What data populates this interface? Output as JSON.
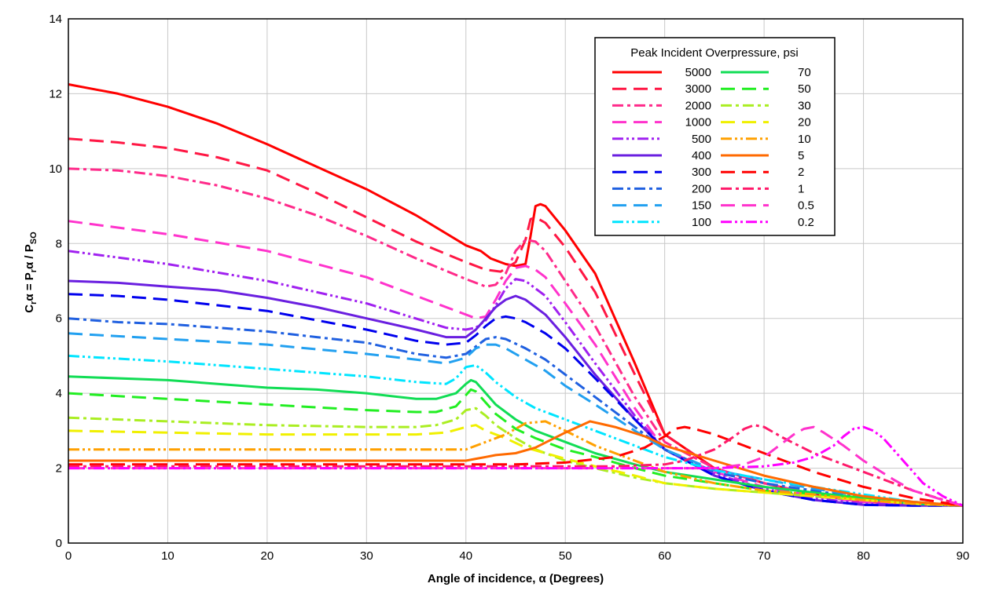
{
  "chart_data": {
    "type": "line",
    "xlabel": "Angle of incidence, α (Degrees)",
    "ylabel": "Crα = Prα / PSO",
    "ylabel_parts": {
      "c": "C",
      "c_sub": "r",
      "eq": "α = P",
      "p_sub": "r",
      "rest": "α / P",
      "so_sub": "SO"
    },
    "xlim": [
      0,
      90
    ],
    "ylim": [
      0,
      14
    ],
    "x_ticks": [
      0,
      10,
      20,
      30,
      40,
      50,
      60,
      70,
      80,
      90
    ],
    "y_ticks": [
      0,
      2,
      4,
      6,
      8,
      10,
      12,
      14
    ],
    "grid": true,
    "legend_title": "Peak Incident Overpressure, psi",
    "legend_position": "top-right",
    "series": [
      {
        "name": "5000",
        "color": "#ff0000",
        "dash": "solid",
        "x": [
          0,
          5,
          10,
          15,
          20,
          25,
          30,
          35,
          40,
          41.5,
          42.5,
          44,
          45,
          46,
          46.5,
          47,
          47.5,
          48,
          50,
          53,
          57,
          60,
          65,
          70,
          75,
          80,
          85,
          90
        ],
        "y": [
          12.25,
          12.0,
          11.65,
          11.2,
          10.65,
          10.05,
          9.45,
          8.75,
          7.95,
          7.8,
          7.6,
          7.45,
          7.4,
          7.45,
          8.2,
          9.0,
          9.05,
          9.0,
          8.35,
          7.2,
          4.8,
          2.9,
          2.0,
          1.6,
          1.3,
          1.1,
          1.05,
          1.0
        ]
      },
      {
        "name": "3000",
        "color": "#ff1744",
        "dash": "longdash",
        "x": [
          0,
          5,
          10,
          15,
          20,
          25,
          30,
          35,
          40,
          42,
          43.5,
          45,
          46,
          46.5,
          47,
          48,
          50,
          53,
          57,
          60,
          65,
          70,
          75,
          80,
          85,
          90
        ],
        "y": [
          10.8,
          10.7,
          10.55,
          10.3,
          9.95,
          9.35,
          8.7,
          8.05,
          7.5,
          7.3,
          7.25,
          7.5,
          8.1,
          8.65,
          8.7,
          8.55,
          7.9,
          6.7,
          4.5,
          2.9,
          2.0,
          1.6,
          1.3,
          1.1,
          1.05,
          1.0
        ]
      },
      {
        "name": "2000",
        "color": "#ff2a8a",
        "dash": "dashdot",
        "x": [
          0,
          5,
          10,
          15,
          20,
          25,
          30,
          35,
          40,
          42,
          43,
          44,
          45,
          46,
          47,
          48,
          50,
          53,
          57,
          60,
          65,
          70,
          75,
          80,
          85,
          90
        ],
        "y": [
          10.0,
          9.95,
          9.8,
          9.55,
          9.2,
          8.75,
          8.2,
          7.6,
          7.05,
          6.85,
          6.9,
          7.2,
          7.8,
          8.1,
          8.05,
          7.8,
          7.0,
          5.8,
          3.9,
          2.7,
          2.0,
          1.6,
          1.3,
          1.1,
          1.05,
          1.0
        ]
      },
      {
        "name": "1000",
        "color": "#ff33cc",
        "dash": "longdash",
        "x": [
          0,
          10,
          20,
          30,
          40,
          41,
          42,
          43,
          44,
          45,
          46,
          47,
          48,
          50,
          53,
          57,
          60,
          65,
          70,
          75,
          80,
          85,
          90
        ],
        "y": [
          8.6,
          8.25,
          7.8,
          7.1,
          6.1,
          6.0,
          6.05,
          6.5,
          7.0,
          7.35,
          7.4,
          7.3,
          7.1,
          6.4,
          5.3,
          3.6,
          2.5,
          1.9,
          1.5,
          1.25,
          1.1,
          1.05,
          1.0
        ]
      },
      {
        "name": "500",
        "color": "#a020f0",
        "dash": "dashdotdot",
        "x": [
          0,
          10,
          20,
          30,
          38,
          40,
          41,
          42,
          43,
          44,
          45,
          46,
          48,
          50,
          53,
          57,
          60,
          65,
          70,
          75,
          80,
          85,
          90
        ],
        "y": [
          7.8,
          7.45,
          7.0,
          6.4,
          5.75,
          5.7,
          5.75,
          5.95,
          6.35,
          6.8,
          7.05,
          7.0,
          6.6,
          5.9,
          4.8,
          3.4,
          2.5,
          1.85,
          1.45,
          1.2,
          1.05,
          1.02,
          1.0
        ]
      },
      {
        "name": "400",
        "color": "#6a1fe0",
        "dash": "solid",
        "x": [
          0,
          5,
          10,
          15,
          20,
          25,
          30,
          35,
          38,
          40,
          41,
          42,
          43,
          44,
          45,
          46,
          48,
          50,
          53,
          57,
          60,
          65,
          70,
          75,
          80,
          85,
          90
        ],
        "y": [
          7.0,
          6.95,
          6.85,
          6.75,
          6.55,
          6.3,
          6.0,
          5.7,
          5.5,
          5.5,
          5.7,
          6.0,
          6.3,
          6.5,
          6.6,
          6.5,
          6.1,
          5.5,
          4.5,
          3.3,
          2.5,
          1.8,
          1.4,
          1.15,
          1.02,
          1.0,
          1.0
        ]
      },
      {
        "name": "300",
        "color": "#0000ee",
        "dash": "longdash",
        "x": [
          0,
          5,
          10,
          15,
          20,
          25,
          30,
          35,
          38,
          40,
          41,
          42,
          43,
          44,
          45,
          46,
          48,
          50,
          53,
          57,
          60,
          65,
          70,
          75,
          80,
          85,
          90
        ],
        "y": [
          6.65,
          6.6,
          6.5,
          6.35,
          6.2,
          5.95,
          5.7,
          5.4,
          5.3,
          5.35,
          5.55,
          5.8,
          6.0,
          6.05,
          6.0,
          5.9,
          5.6,
          5.2,
          4.4,
          3.3,
          2.5,
          1.8,
          1.4,
          1.15,
          1.02,
          1.0,
          1.0
        ]
      },
      {
        "name": "200",
        "color": "#2060e0",
        "dash": "dashdot",
        "x": [
          0,
          5,
          10,
          15,
          20,
          25,
          30,
          35,
          38,
          40,
          41,
          42,
          43,
          44,
          46,
          48,
          50,
          53,
          57,
          60,
          65,
          70,
          75,
          80,
          85,
          90
        ],
        "y": [
          6.0,
          5.9,
          5.85,
          5.75,
          5.65,
          5.5,
          5.35,
          5.05,
          4.95,
          5.05,
          5.25,
          5.45,
          5.5,
          5.45,
          5.2,
          4.9,
          4.5,
          3.9,
          3.1,
          2.5,
          1.9,
          1.6,
          1.4,
          1.2,
          1.05,
          1.0
        ]
      },
      {
        "name": "150",
        "color": "#22a0f0",
        "dash": "longdash",
        "x": [
          0,
          10,
          20,
          30,
          35,
          38,
          40,
          41,
          42,
          43,
          44,
          46,
          48,
          50,
          53,
          57,
          60,
          65,
          70,
          75,
          80,
          85,
          90
        ],
        "y": [
          5.6,
          5.45,
          5.3,
          5.05,
          4.9,
          4.8,
          4.95,
          5.2,
          5.3,
          5.3,
          5.2,
          4.9,
          4.6,
          4.2,
          3.7,
          3.0,
          2.5,
          1.95,
          1.7,
          1.45,
          1.25,
          1.1,
          1.0
        ]
      },
      {
        "name": "100",
        "color": "#00e5ff",
        "dash": "dashdotdot",
        "x": [
          0,
          10,
          20,
          30,
          35,
          38,
          39,
          40,
          41,
          42,
          43,
          45,
          47,
          50,
          53,
          57,
          60,
          65,
          70,
          75,
          80,
          85,
          90
        ],
        "y": [
          5.0,
          4.85,
          4.65,
          4.45,
          4.3,
          4.25,
          4.4,
          4.7,
          4.75,
          4.55,
          4.3,
          3.9,
          3.6,
          3.3,
          3.0,
          2.6,
          2.3,
          1.95,
          1.7,
          1.5,
          1.3,
          1.1,
          1.0
        ]
      },
      {
        "name": "70",
        "color": "#11dd55",
        "dash": "solid",
        "x": [
          0,
          10,
          20,
          25,
          30,
          35,
          37,
          39,
          40,
          40.5,
          41,
          42,
          43,
          45,
          47,
          50,
          53,
          57,
          60,
          65,
          70,
          75,
          80,
          85,
          90
        ],
        "y": [
          4.45,
          4.35,
          4.15,
          4.1,
          4.0,
          3.85,
          3.85,
          4.0,
          4.25,
          4.35,
          4.3,
          4.0,
          3.7,
          3.3,
          3.0,
          2.7,
          2.4,
          2.1,
          1.9,
          1.7,
          1.5,
          1.35,
          1.2,
          1.05,
          1.0
        ]
      },
      {
        "name": "50",
        "color": "#22ee22",
        "dash": "longdash",
        "x": [
          0,
          10,
          20,
          30,
          35,
          37,
          39,
          40,
          40.5,
          41,
          42,
          43,
          45,
          47,
          50,
          53,
          57,
          60,
          65,
          70,
          75,
          80,
          85,
          90
        ],
        "y": [
          4.0,
          3.85,
          3.7,
          3.55,
          3.5,
          3.5,
          3.65,
          3.95,
          4.1,
          4.05,
          3.75,
          3.45,
          3.05,
          2.8,
          2.5,
          2.3,
          2.0,
          1.8,
          1.6,
          1.4,
          1.3,
          1.2,
          1.05,
          1.0
        ]
      },
      {
        "name": "30",
        "color": "#aaee22",
        "dash": "dashdot",
        "x": [
          0,
          10,
          20,
          30,
          35,
          37,
          39,
          40,
          41,
          42,
          43,
          45,
          47,
          50,
          53,
          57,
          60,
          65,
          70,
          75,
          80,
          85,
          90
        ],
        "y": [
          3.35,
          3.25,
          3.15,
          3.1,
          3.1,
          3.15,
          3.3,
          3.55,
          3.6,
          3.4,
          3.15,
          2.8,
          2.5,
          2.2,
          2.0,
          1.75,
          1.6,
          1.45,
          1.35,
          1.25,
          1.15,
          1.05,
          1.0
        ]
      },
      {
        "name": "20",
        "color": "#f0f000",
        "dash": "longdash",
        "x": [
          0,
          10,
          20,
          30,
          35,
          38,
          40,
          41,
          42,
          44,
          46,
          50,
          53,
          57,
          60,
          65,
          70,
          75,
          80,
          85,
          90
        ],
        "y": [
          3.0,
          2.95,
          2.9,
          2.9,
          2.9,
          2.95,
          3.1,
          3.15,
          3.0,
          2.8,
          2.55,
          2.25,
          2.05,
          1.8,
          1.6,
          1.45,
          1.35,
          1.25,
          1.15,
          1.05,
          1.0
        ]
      },
      {
        "name": "10",
        "color": "#ffa000",
        "dash": "dashdotdot",
        "x": [
          0,
          10,
          20,
          30,
          40,
          42,
          44,
          46,
          48,
          50,
          53,
          57,
          60,
          65,
          70,
          75,
          80,
          85,
          90
        ],
        "y": [
          2.5,
          2.5,
          2.5,
          2.5,
          2.5,
          2.7,
          2.9,
          3.2,
          3.25,
          3.0,
          2.6,
          2.2,
          1.9,
          1.6,
          1.4,
          1.3,
          1.15,
          1.05,
          1.0
        ]
      },
      {
        "name": "5",
        "color": "#ff6a00",
        "dash": "solid",
        "x": [
          0,
          10,
          20,
          30,
          40,
          41,
          42,
          43,
          45,
          47,
          50,
          52.5,
          55,
          58,
          60,
          65,
          70,
          75,
          80,
          85,
          90
        ],
        "y": [
          2.2,
          2.2,
          2.2,
          2.2,
          2.2,
          2.25,
          2.3,
          2.35,
          2.4,
          2.55,
          2.95,
          3.25,
          3.1,
          2.85,
          2.6,
          2.2,
          1.8,
          1.5,
          1.25,
          1.1,
          1.0
        ]
      },
      {
        "name": "2",
        "color": "#ff0000",
        "dash": "longdash",
        "x": [
          0,
          10,
          20,
          30,
          40,
          45,
          50,
          55,
          58,
          60,
          61,
          62,
          63,
          65,
          68,
          70,
          75,
          80,
          85,
          90
        ],
        "y": [
          2.1,
          2.1,
          2.1,
          2.1,
          2.1,
          2.1,
          2.15,
          2.3,
          2.55,
          2.85,
          3.05,
          3.1,
          3.05,
          2.9,
          2.6,
          2.4,
          1.9,
          1.5,
          1.2,
          1.0
        ]
      },
      {
        "name": "1",
        "color": "#ff1a6a",
        "dash": "dashdot",
        "x": [
          0,
          10,
          20,
          30,
          40,
          50,
          55,
          60,
          62,
          65,
          67,
          68,
          69,
          70,
          72,
          75,
          80,
          85,
          90
        ],
        "y": [
          2.05,
          2.05,
          2.05,
          2.05,
          2.05,
          2.05,
          2.05,
          2.1,
          2.2,
          2.5,
          2.85,
          3.05,
          3.15,
          3.1,
          2.8,
          2.4,
          1.9,
          1.4,
          1.0
        ]
      },
      {
        "name": "0.5",
        "color": "#ff33cc",
        "dash": "longdash",
        "x": [
          0,
          10,
          20,
          30,
          40,
          50,
          60,
          65,
          68,
          70,
          72,
          73,
          74,
          75,
          76,
          78,
          80,
          83,
          85,
          88,
          90
        ],
        "y": [
          2.0,
          2.0,
          2.0,
          2.0,
          2.0,
          2.0,
          2.0,
          2.0,
          2.1,
          2.3,
          2.7,
          2.9,
          3.05,
          3.1,
          2.95,
          2.6,
          2.2,
          1.7,
          1.4,
          1.15,
          1.0
        ]
      },
      {
        "name": "0.2",
        "color": "#ff00ff",
        "dash": "dashdotdot",
        "x": [
          0,
          10,
          20,
          30,
          40,
          50,
          60,
          65,
          70,
          73,
          75,
          77,
          78,
          79,
          80,
          81,
          82,
          84,
          86,
          88,
          90
        ],
        "y": [
          2.0,
          2.0,
          2.0,
          2.0,
          2.0,
          2.0,
          2.0,
          2.0,
          2.05,
          2.15,
          2.3,
          2.6,
          2.85,
          3.05,
          3.1,
          3.0,
          2.8,
          2.2,
          1.6,
          1.25,
          1.0
        ]
      }
    ]
  }
}
